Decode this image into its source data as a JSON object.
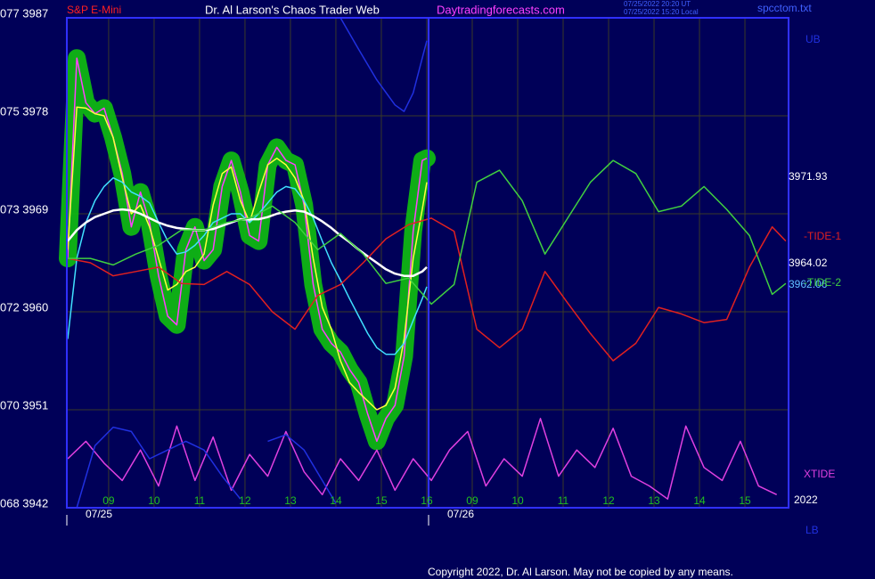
{
  "header": {
    "instrument": "S&P E-Mini",
    "site_title": "Dr. Al Larson's Chaos Trader Web",
    "url": "Daytradingforecasts.com",
    "time_ut": "07/25/2022 20:20 UT",
    "time_local": "07/25/2022 15:20 Local",
    "file": "spcctom.txt"
  },
  "chart_data": {
    "type": "line",
    "ylim": [
      3942,
      3987
    ],
    "yticks": [
      {
        "value": 3942,
        "label": "068 3942"
      },
      {
        "value": 3951,
        "label": "070 3951"
      },
      {
        "value": 3960,
        "label": "072 3960"
      },
      {
        "value": 3969,
        "label": "073 3969"
      },
      {
        "value": 3978,
        "label": "075 3978"
      },
      {
        "value": 3987,
        "label": "077 3987"
      }
    ],
    "xlim": [
      8.08,
      23.96
    ],
    "xticks": [
      {
        "value": 9,
        "label": "09"
      },
      10,
      11,
      12,
      13,
      14,
      15,
      16,
      {
        "value": 17,
        "label": "09"
      },
      {
        "value": 18,
        "label": "10"
      },
      {
        "value": 19,
        "label": "11"
      },
      {
        "value": 20,
        "label": "12"
      },
      {
        "value": 21,
        "label": "13"
      },
      {
        "value": 22,
        "label": "14"
      },
      {
        "value": 23,
        "label": "15"
      }
    ],
    "dates": [
      "07/25",
      "07/26"
    ],
    "grid": true,
    "right_values": [
      "3971.93",
      "3964.02",
      "3962.06"
    ],
    "year": "2022",
    "series": [
      {
        "color": "#ff40ff",
        "glow": "#10c010",
        "x": [
          8.1,
          8.3,
          8.5,
          8.7,
          8.9,
          9.1,
          9.3,
          9.5,
          9.7,
          9.9,
          10.1,
          10.3,
          10.5,
          10.7,
          10.9,
          11.1,
          11.3,
          11.5,
          11.7,
          11.9,
          12.1,
          12.3,
          12.5,
          12.7,
          12.9,
          13.1,
          13.3,
          13.5,
          13.7,
          13.9,
          14.1,
          14.3,
          14.5,
          14.7,
          14.9,
          15.1,
          15.3,
          15.5,
          15.7,
          15.9,
          16.0
        ],
        "values": [
          3964.9,
          3983.3,
          3979.2,
          3978.2,
          3978.7,
          3976.0,
          3972.7,
          3967.8,
          3971.0,
          3968.2,
          3963.3,
          3959.6,
          3958.8,
          3965.7,
          3967.8,
          3964.7,
          3965.7,
          3971.5,
          3973.9,
          3971.0,
          3967.0,
          3966.5,
          3973.5,
          3975.1,
          3973.9,
          3973.5,
          3969.8,
          3962.5,
          3958.4,
          3957.1,
          3956.3,
          3954.7,
          3953.5,
          3950.6,
          3948.1,
          3950.2,
          3951.4,
          3955.9,
          3967.4,
          3973.9,
          3974.1
        ]
      },
      {
        "color": "#ffff40",
        "x": [
          8.1,
          8.3,
          8.5,
          8.7,
          8.9,
          9.1,
          9.3,
          9.5,
          9.7,
          9.9,
          10.1,
          10.3,
          10.5,
          10.7,
          10.9,
          11.1,
          11.3,
          11.5,
          11.7,
          11.9,
          12.1,
          12.3,
          12.5,
          12.7,
          12.9,
          13.1,
          13.3,
          13.5,
          13.7,
          13.9,
          14.1,
          14.3,
          14.5,
          14.7,
          14.9,
          15.1,
          15.3,
          15.5,
          15.7,
          15.9,
          16.0
        ],
        "values": [
          3965.7,
          3978.8,
          3978.7,
          3978.2,
          3978.0,
          3976.0,
          3972.3,
          3969.0,
          3969.8,
          3967.8,
          3964.9,
          3962.0,
          3962.5,
          3963.7,
          3964.1,
          3965.3,
          3969.8,
          3972.7,
          3973.3,
          3970.2,
          3968.2,
          3971.0,
          3973.5,
          3974.1,
          3973.5,
          3972.3,
          3970.2,
          3964.9,
          3960.4,
          3958.4,
          3955.5,
          3953.5,
          3952.6,
          3951.8,
          3951.0,
          3951.4,
          3953.0,
          3957.5,
          3964.9,
          3969.4,
          3971.9
        ]
      },
      {
        "color": "#40e0ff",
        "x": [
          8.1,
          8.3,
          8.5,
          8.7,
          8.9,
          9.1,
          9.3,
          9.5,
          9.7,
          9.9,
          10.1,
          10.3,
          10.5,
          10.7,
          10.9,
          11.1,
          11.3,
          11.5,
          11.7,
          11.9,
          12.1,
          12.3,
          12.5,
          12.7,
          12.9,
          13.1,
          13.3,
          13.5,
          13.7,
          13.9,
          14.1,
          14.3,
          14.5,
          14.7,
          14.9,
          15.1,
          15.3,
          15.5,
          15.7,
          15.9,
          16.0
        ],
        "values": [
          3957.5,
          3964.9,
          3968.2,
          3970.2,
          3971.5,
          3972.3,
          3971.9,
          3971.0,
          3970.6,
          3970.0,
          3968.2,
          3966.5,
          3965.3,
          3965.5,
          3966.1,
          3967.0,
          3968.2,
          3968.6,
          3969.0,
          3969.0,
          3968.2,
          3969.0,
          3970.0,
          3971.0,
          3971.5,
          3971.3,
          3970.2,
          3968.6,
          3966.5,
          3964.5,
          3962.9,
          3961.2,
          3959.6,
          3958.0,
          3956.7,
          3956.1,
          3956.1,
          3957.1,
          3959.2,
          3961.2,
          3962.3
        ]
      },
      {
        "color": "#ffffff",
        "x": [
          8.1,
          8.3,
          8.5,
          8.7,
          8.9,
          9.1,
          9.3,
          9.5,
          9.7,
          9.9,
          10.1,
          10.3,
          10.5,
          10.7,
          10.9,
          11.1,
          11.3,
          11.5,
          11.7,
          11.9,
          12.1,
          12.3,
          12.5,
          12.7,
          12.9,
          13.1,
          13.3,
          13.5,
          13.7,
          13.9,
          14.1,
          14.3,
          14.5,
          14.7,
          14.9,
          15.1,
          15.3,
          15.5,
          15.7,
          15.9,
          16.0
        ],
        "values": [
          3966.5,
          3967.5,
          3968.2,
          3968.7,
          3969.0,
          3969.3,
          3969.4,
          3969.3,
          3969.0,
          3968.6,
          3968.2,
          3967.9,
          3967.7,
          3967.6,
          3967.5,
          3967.5,
          3967.6,
          3967.9,
          3968.2,
          3968.5,
          3968.5,
          3968.5,
          3968.7,
          3969.0,
          3969.2,
          3969.3,
          3969.2,
          3968.8,
          3968.3,
          3967.7,
          3967.0,
          3966.4,
          3965.7,
          3965.1,
          3964.5,
          3963.9,
          3963.5,
          3963.3,
          3963.3,
          3963.7,
          3964.1
        ]
      },
      {
        "name": "-TIDE-1",
        "color": "#e02020",
        "x": [
          8.1,
          8.6,
          9.1,
          9.6,
          10.1,
          10.6,
          11.1,
          11.6,
          12.1,
          12.6,
          13.1,
          13.6,
          14.1,
          14.6,
          15.1,
          15.6,
          16.1,
          16.6,
          17.1,
          17.6,
          18.1,
          18.6,
          19.1,
          19.6,
          20.1,
          20.6,
          21.1,
          21.6,
          22.1,
          22.6,
          23.1,
          23.6,
          23.9
        ],
        "values": [
          3964.9,
          3964.5,
          3963.3,
          3963.7,
          3964.1,
          3962.6,
          3962.5,
          3963.7,
          3962.5,
          3960.0,
          3958.4,
          3961.5,
          3962.5,
          3964.5,
          3966.7,
          3968.0,
          3968.6,
          3967.4,
          3958.4,
          3956.7,
          3958.4,
          3963.7,
          3960.8,
          3958.0,
          3955.5,
          3957.1,
          3960.4,
          3959.8,
          3959.0,
          3959.3,
          3964.1,
          3967.8,
          3966.5
        ]
      },
      {
        "name": "-TIDE-2",
        "color": "#40d040",
        "x": [
          8.1,
          8.6,
          9.1,
          9.6,
          10.1,
          10.6,
          11.1,
          11.6,
          12.1,
          12.6,
          13.1,
          13.6,
          14.1,
          14.6,
          15.1,
          15.6,
          16.1,
          16.6,
          17.1,
          17.6,
          18.1,
          18.6,
          19.1,
          19.6,
          20.1,
          20.6,
          21.1,
          21.6,
          22.1,
          22.6,
          23.1,
          23.6,
          23.9
        ],
        "values": [
          3964.9,
          3964.9,
          3964.3,
          3965.3,
          3966.1,
          3967.5,
          3967.5,
          3968.2,
          3968.6,
          3969.7,
          3968.2,
          3965.7,
          3967.2,
          3965.3,
          3962.6,
          3963.1,
          3960.7,
          3962.5,
          3971.9,
          3973.0,
          3970.2,
          3965.3,
          3968.6,
          3971.9,
          3973.9,
          3972.7,
          3969.2,
          3969.7,
          3971.5,
          3969.4,
          3967.0,
          3961.6,
          3962.6
        ]
      },
      {
        "name": "XTIDE",
        "color": "#e040e0",
        "x": [
          8.1,
          8.5,
          8.9,
          9.3,
          9.7,
          10.1,
          10.5,
          10.9,
          11.3,
          11.7,
          12.1,
          12.5,
          12.9,
          13.3,
          13.7,
          14.1,
          14.5,
          14.9,
          15.3,
          15.7,
          16.1,
          16.5,
          16.9,
          17.3,
          17.7,
          18.1,
          18.5,
          18.9,
          19.3,
          19.7,
          20.1,
          20.5,
          20.9,
          21.3,
          21.7,
          22.1,
          22.5,
          22.9,
          23.3,
          23.7
        ],
        "values": [
          3946.5,
          3948.1,
          3946.1,
          3944.5,
          3947.3,
          3944.0,
          3949.5,
          3944.5,
          3948.5,
          3943.6,
          3946.9,
          3944.9,
          3949.0,
          3945.3,
          3943.2,
          3946.5,
          3944.5,
          3947.3,
          3943.6,
          3946.5,
          3944.5,
          3947.3,
          3949.0,
          3944.0,
          3946.5,
          3944.9,
          3950.2,
          3944.9,
          3947.3,
          3945.7,
          3949.3,
          3944.9,
          3944.0,
          3942.8,
          3949.5,
          3945.7,
          3944.5,
          3948.1,
          3944.0,
          3943.2
        ]
      },
      {
        "name": "UB",
        "color": "#2030e0",
        "x": [
          14.1,
          14.5,
          14.9,
          15.3,
          15.5,
          15.7,
          15.9,
          16.0
        ],
        "values": [
          3987,
          3984.1,
          3981.3,
          3979.0,
          3978.4,
          3980.1,
          3983.3,
          3984.9
        ]
      },
      {
        "name": "LB",
        "color": "#2030e0",
        "x": [
          8.3,
          8.7,
          9.1,
          9.5,
          9.9,
          10.3,
          10.7,
          11.1,
          11.5,
          11.9,
          12.2,
          12.5,
          12.9,
          13.3,
          13.7,
          14.0
        ],
        "values": [
          3942.0,
          3947.7,
          3949.4,
          3949.0,
          3946.5,
          3947.3,
          3948.1,
          3947.3,
          3944.9,
          3942.8,
          null,
          3948.1,
          3948.7,
          3947.3,
          3944.5,
          3942.4
        ]
      }
    ]
  },
  "footer": {
    "copyright": "Copyright 2022, Dr. Al Larson. May not be copied by any means."
  }
}
